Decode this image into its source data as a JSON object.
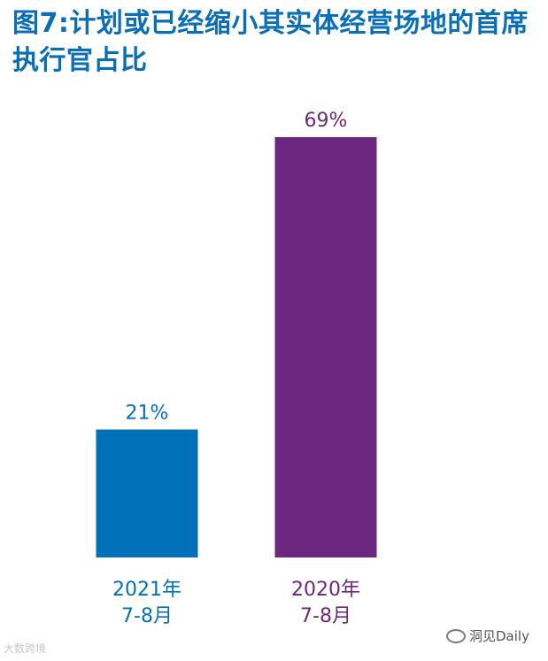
{
  "title": "图7:计划或已经缩小其实体经营场地的首席执行官占比",
  "watermarks": {
    "left": "大数跨境",
    "right": "洞见Daily"
  },
  "colors": {
    "title": "#0a6fb7"
  },
  "chart_data": {
    "type": "bar",
    "title": "图7:计划或已经缩小其实体经营场地的首席执行官占比",
    "categories": [
      [
        "2021年",
        "7-8月"
      ],
      [
        "2020年",
        "7-8月"
      ]
    ],
    "values": [
      21,
      69
    ],
    "value_labels": [
      "21%",
      "69%"
    ],
    "colors": [
      "#0071b9",
      "#6c2881"
    ],
    "ylim": [
      0,
      69
    ],
    "grid": false,
    "legend": "none"
  }
}
